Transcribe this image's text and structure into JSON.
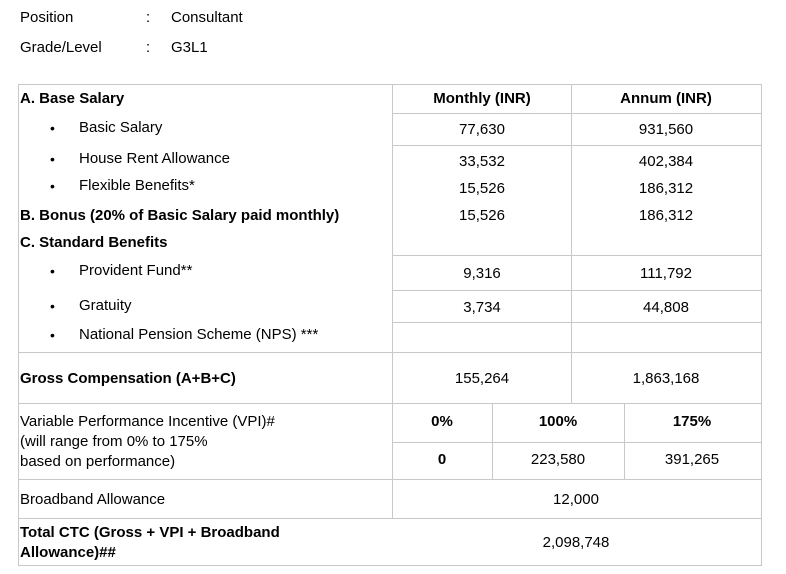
{
  "meta": {
    "position_label": "Position",
    "position_colon": ":",
    "position_value": "Consultant",
    "grade_label": "Grade/Level",
    "grade_colon": ":",
    "grade_value": "G3L1"
  },
  "table": {
    "headers": {
      "monthly": "Monthly (INR)",
      "annum": "Annum (INR)"
    },
    "bullet_char": "•",
    "sections": {
      "base": {
        "title": "A. Base Salary",
        "items": [
          {
            "label": "Basic Salary",
            "monthly": "77,630",
            "annum": "931,560"
          },
          {
            "label": "House Rent Allowance",
            "monthly": "33,532",
            "annum": "402,384"
          },
          {
            "label": "Flexible Benefits*",
            "monthly": "15,526",
            "annum": "186,312"
          }
        ]
      },
      "bonus": {
        "title": "B. Bonus (20% of Basic Salary paid monthly)",
        "monthly": "15,526",
        "annum": "186,312"
      },
      "benefits": {
        "title": "C. Standard Benefits",
        "items": [
          {
            "label": "Provident Fund**",
            "monthly": "9,316",
            "annum": "111,792"
          },
          {
            "label": "Gratuity",
            "monthly": "3,734",
            "annum": "44,808"
          },
          {
            "label": "National Pension Scheme (NPS) ***",
            "monthly": "",
            "annum": ""
          }
        ]
      }
    },
    "gross": {
      "label": "Gross Compensation (A+B+C)",
      "monthly": "155,264",
      "annum": "1,863,168"
    },
    "vpi": {
      "label_line1": "Variable Performance Incentive (VPI)#",
      "label_line2": "(will range from 0% to 175%",
      "label_line3": "based on performance)",
      "percents": [
        "0%",
        "100%",
        "175%"
      ],
      "amounts": [
        "0",
        "223,580",
        "391,265"
      ]
    },
    "broadband": {
      "label": "Broadband Allowance",
      "value": "12,000"
    },
    "total": {
      "label_line1": "Total CTC (Gross + VPI + Broadband",
      "label_line2": "Allowance)##",
      "value": "2,098,748"
    }
  }
}
